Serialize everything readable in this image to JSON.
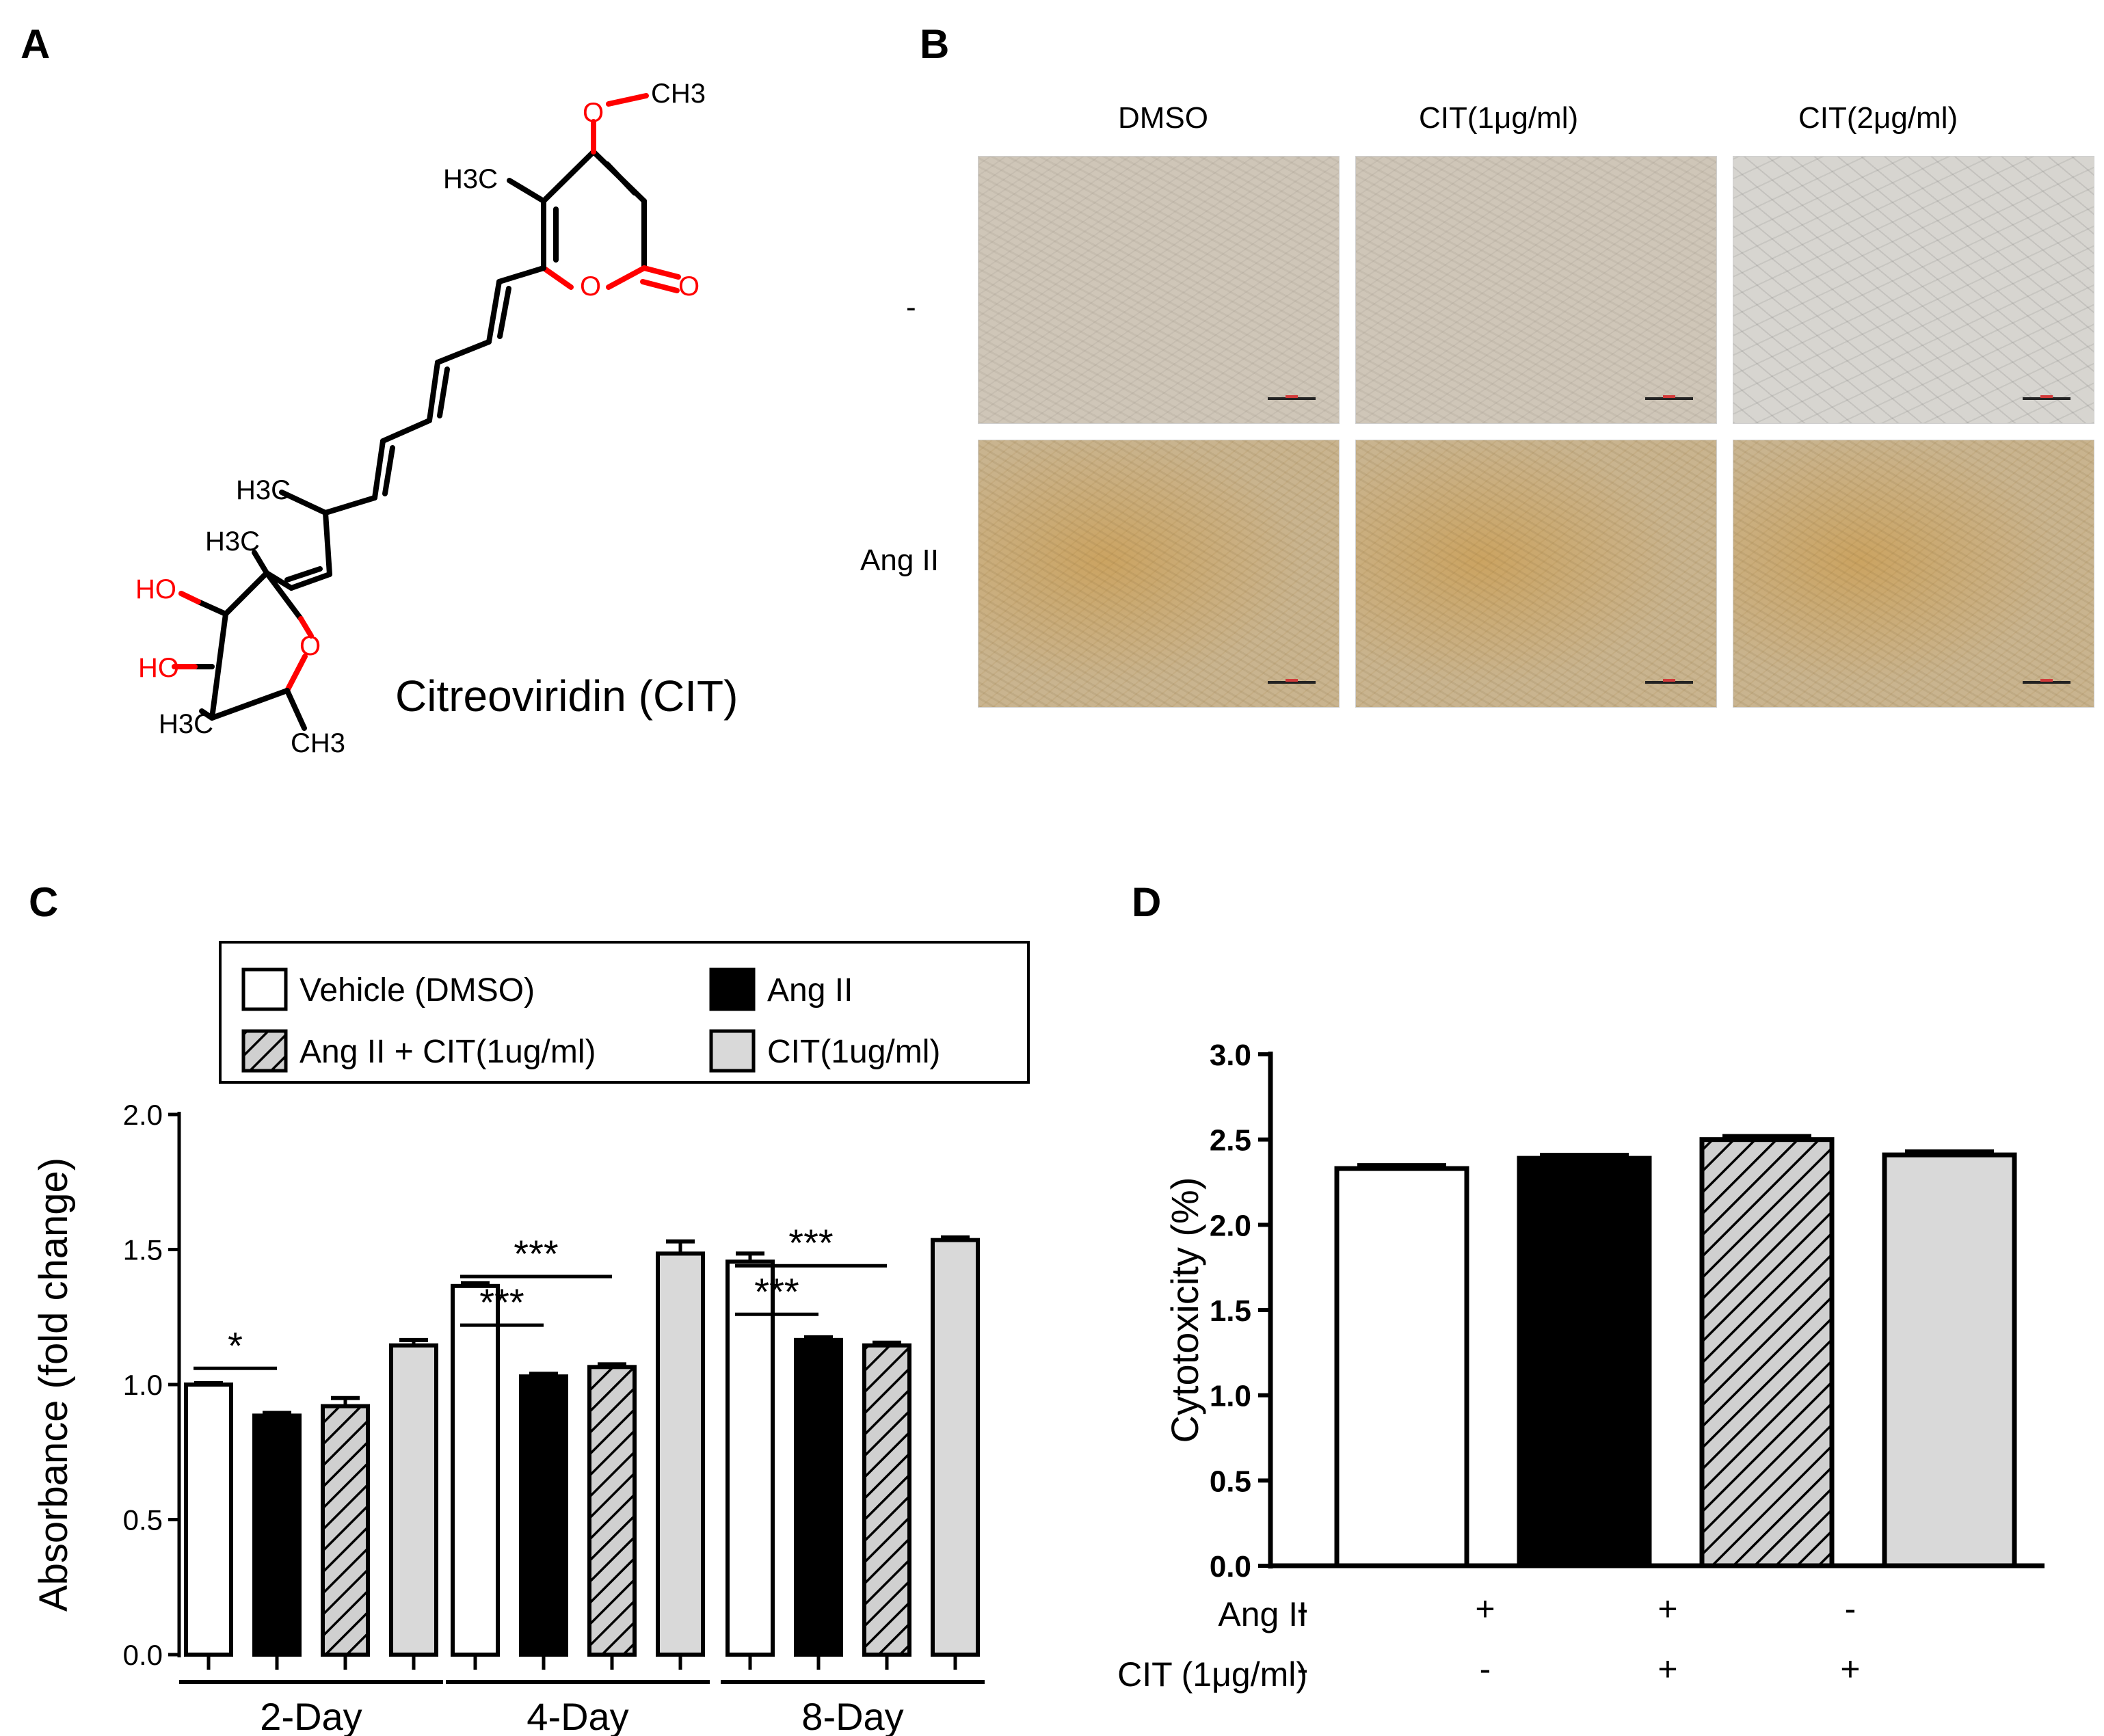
{
  "panels": {
    "a": "A",
    "b": "B",
    "c": "C",
    "d": "D"
  },
  "panel_a": {
    "compound_name": "Citreoviridin (CIT)",
    "atoms": {
      "methoxy_ch3": "CH3",
      "h3c_ring": "H3C",
      "h3c_chain": "H3C",
      "h3c_quat": "H3C",
      "h3c_bottom": "H3C",
      "ch3_bottom": "CH3",
      "ho_top": "HO",
      "ho_bottom": "HO",
      "o_methoxy": "O",
      "o_pyrone": "O",
      "o_carbonyl": "O",
      "o_furan": "O"
    },
    "colors": {
      "heteroatom": "#ff0000",
      "bond": "#000000"
    }
  },
  "panel_b": {
    "columns": [
      "DMSO",
      "CIT(1μg/ml)",
      "CIT(2μg/ml)"
    ],
    "rows": [
      "-",
      "Ang II"
    ]
  },
  "chart_data": [
    {
      "panel": "C",
      "type": "bar",
      "ylabel": "Absorbance (fold change)",
      "ylim": [
        0,
        2.0
      ],
      "yticks": [
        "0.0",
        "0.5",
        "1.0",
        "1.5",
        "2.0"
      ],
      "categories": [
        "2-Day",
        "4-Day",
        "8-Day"
      ],
      "legend": {
        "placement": "top",
        "entries": [
          "Vehicle (DMSO)",
          "Ang II",
          "Ang II + CIT(1ug/ml)",
          "CIT(1ug/ml)"
        ]
      },
      "series": [
        {
          "name": "Vehicle (DMSO)",
          "fill": "#ffffff",
          "pattern": "none",
          "values": [
            1.0,
            1.365,
            1.455
          ],
          "errors": [
            0.005,
            0.01,
            0.03
          ]
        },
        {
          "name": "Ang II",
          "fill": "#000000",
          "pattern": "none",
          "values": [
            0.885,
            1.03,
            1.165
          ],
          "errors": [
            0.01,
            0.01,
            0.01
          ]
        },
        {
          "name": "Ang II + CIT(1ug/ml)",
          "fill": "#d0d0d0",
          "pattern": "hatch",
          "values": [
            0.92,
            1.065,
            1.145
          ],
          "errors": [
            0.03,
            0.01,
            0.01
          ]
        },
        {
          "name": "CIT(1ug/ml)",
          "fill": "#d9d9d9",
          "pattern": "none",
          "values": [
            1.145,
            1.485,
            1.535
          ],
          "errors": [
            0.02,
            0.045,
            0.01
          ]
        }
      ],
      "significance": [
        {
          "group": 0,
          "from": 0,
          "to": 1,
          "label": "*",
          "y": 1.06
        },
        {
          "group": 1,
          "from": 0,
          "to": 1,
          "label": "***",
          "y": 1.22
        },
        {
          "group": 1,
          "from": 0,
          "to": 2,
          "label": "***",
          "y": 1.4
        },
        {
          "group": 2,
          "from": 0,
          "to": 1,
          "label": "***",
          "y": 1.26
        },
        {
          "group": 2,
          "from": 0,
          "to": 2,
          "label": "***",
          "y": 1.44
        }
      ],
      "grid": false
    },
    {
      "panel": "D",
      "type": "bar",
      "ylabel": "Cytotoxicity (%)",
      "ylim": [
        0,
        3.0
      ],
      "yticks": [
        "0.0",
        "0.5",
        "1.0",
        "1.5",
        "2.0",
        "2.5",
        "3.0"
      ],
      "conditions": {
        "row_labels": [
          "Ang II",
          "CIT (1μg/ml)"
        ],
        "ang_ii": [
          "-",
          "+",
          "+",
          "-"
        ],
        "cit": [
          "-",
          "-",
          "+",
          "+"
        ]
      },
      "bars": [
        {
          "fill": "#ffffff",
          "pattern": "none",
          "value": 2.33,
          "error": 0.02
        },
        {
          "fill": "#000000",
          "pattern": "none",
          "value": 2.39,
          "error": 0.02
        },
        {
          "fill": "#d0d0d0",
          "pattern": "hatch",
          "value": 2.5,
          "error": 0.02
        },
        {
          "fill": "#d9d9d9",
          "pattern": "none",
          "value": 2.41,
          "error": 0.02
        }
      ],
      "grid": false
    }
  ]
}
